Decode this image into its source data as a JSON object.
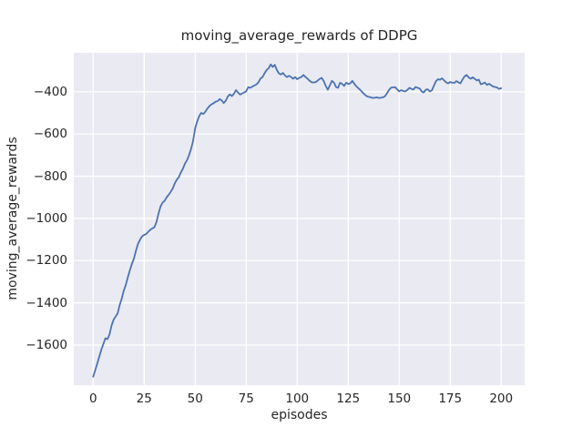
{
  "chart_data": {
    "type": "line",
    "title": "moving_average_rewards of DDPG",
    "xlabel": "episodes",
    "ylabel": "moving_average_rewards",
    "legend": null,
    "grid": true,
    "style": "seaborn-darkgrid",
    "plot_bg_color": "#eaeaf2",
    "gridline_color": "#ffffff",
    "line_color": "#4c72b0",
    "text_color": "#262626",
    "xlim": [
      -9.5,
      211.5
    ],
    "ylim": [
      -1790,
      -215
    ],
    "xticks": [
      0,
      25,
      50,
      75,
      100,
      125,
      150,
      175,
      200
    ],
    "yticks": [
      -400,
      -600,
      -800,
      -1000,
      -1200,
      -1400,
      -1600
    ],
    "series": [
      {
        "name": "moving_average_rewards",
        "x": [
          0,
          1,
          2,
          3,
          4,
          5,
          6,
          7,
          8,
          9,
          10,
          11,
          12,
          13,
          14,
          15,
          16,
          17,
          18,
          19,
          20,
          21,
          22,
          23,
          24,
          25,
          26,
          27,
          28,
          29,
          30,
          31,
          32,
          33,
          34,
          35,
          36,
          37,
          38,
          39,
          40,
          41,
          42,
          43,
          44,
          45,
          46,
          47,
          48,
          49,
          50,
          51,
          52,
          53,
          54,
          55,
          56,
          57,
          58,
          59,
          60,
          61,
          62,
          63,
          64,
          65,
          66,
          67,
          68,
          69,
          70,
          71,
          72,
          73,
          74,
          75,
          76,
          77,
          78,
          79,
          80,
          81,
          82,
          83,
          84,
          85,
          86,
          87,
          88,
          89,
          90,
          91,
          92,
          93,
          94,
          95,
          96,
          97,
          98,
          99,
          100,
          101,
          102,
          103,
          104,
          105,
          106,
          107,
          108,
          109,
          110,
          111,
          112,
          113,
          114,
          115,
          116,
          117,
          118,
          119,
          120,
          121,
          122,
          123,
          124,
          125,
          126,
          127,
          128,
          129,
          130,
          131,
          132,
          133,
          134,
          135,
          136,
          137,
          138,
          139,
          140,
          141,
          142,
          143,
          144,
          145,
          146,
          147,
          148,
          149,
          150,
          151,
          152,
          153,
          154,
          155,
          156,
          157,
          158,
          159,
          160,
          161,
          162,
          163,
          164,
          165,
          166,
          167,
          168,
          169,
          170,
          171,
          172,
          173,
          174,
          175,
          176,
          177,
          178,
          179,
          180,
          181,
          182,
          183,
          184,
          185,
          186,
          187,
          188,
          189,
          190,
          191,
          192,
          193,
          194,
          195,
          196,
          197,
          198,
          199,
          200
        ],
        "y": [
          -1750,
          -1720,
          -1688,
          -1655,
          -1622,
          -1595,
          -1568,
          -1572,
          -1550,
          -1508,
          -1480,
          -1465,
          -1450,
          -1410,
          -1380,
          -1342,
          -1315,
          -1278,
          -1245,
          -1215,
          -1190,
          -1152,
          -1120,
          -1100,
          -1085,
          -1078,
          -1074,
          -1063,
          -1054,
          -1047,
          -1042,
          -1018,
          -978,
          -944,
          -925,
          -917,
          -900,
          -888,
          -874,
          -858,
          -834,
          -816,
          -804,
          -782,
          -764,
          -740,
          -724,
          -700,
          -670,
          -632,
          -572,
          -540,
          -514,
          -500,
          -505,
          -494,
          -479,
          -467,
          -459,
          -454,
          -447,
          -444,
          -434,
          -441,
          -453,
          -442,
          -422,
          -412,
          -420,
          -409,
          -392,
          -403,
          -413,
          -408,
          -403,
          -397,
          -378,
          -381,
          -375,
          -370,
          -365,
          -355,
          -337,
          -330,
          -312,
          -297,
          -288,
          -270,
          -282,
          -272,
          -296,
          -312,
          -318,
          -310,
          -322,
          -330,
          -324,
          -330,
          -338,
          -330,
          -340,
          -334,
          -330,
          -320,
          -329,
          -337,
          -347,
          -354,
          -356,
          -354,
          -347,
          -339,
          -334,
          -349,
          -372,
          -390,
          -369,
          -348,
          -356,
          -377,
          -381,
          -357,
          -362,
          -372,
          -357,
          -362,
          -360,
          -348,
          -362,
          -374,
          -383,
          -392,
          -403,
          -412,
          -420,
          -424,
          -426,
          -429,
          -428,
          -426,
          -429,
          -428,
          -426,
          -421,
          -407,
          -391,
          -380,
          -379,
          -378,
          -388,
          -398,
          -392,
          -396,
          -398,
          -391,
          -381,
          -386,
          -389,
          -377,
          -381,
          -384,
          -398,
          -403,
          -390,
          -388,
          -398,
          -393,
          -371,
          -350,
          -340,
          -343,
          -336,
          -346,
          -355,
          -360,
          -353,
          -357,
          -358,
          -349,
          -355,
          -360,
          -342,
          -327,
          -320,
          -331,
          -338,
          -331,
          -338,
          -346,
          -342,
          -364,
          -361,
          -356,
          -367,
          -362,
          -368,
          -375,
          -377,
          -380,
          -386,
          -383
        ]
      }
    ]
  }
}
